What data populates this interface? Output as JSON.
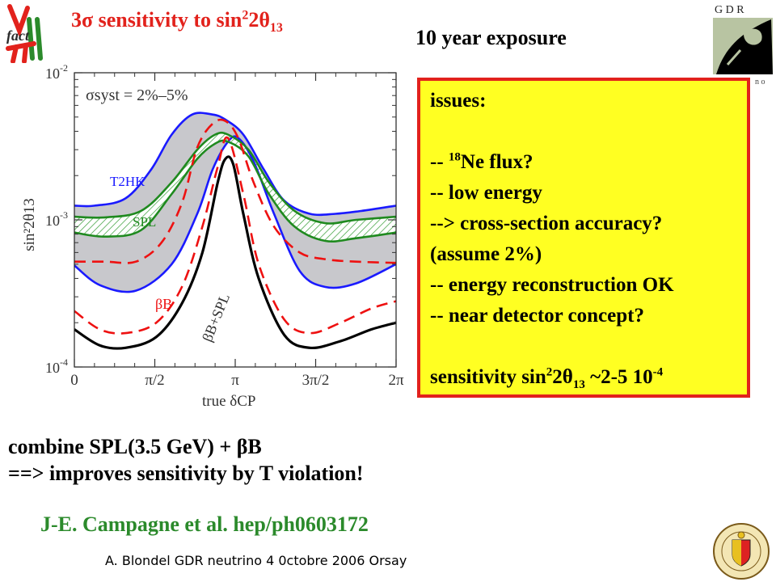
{
  "slide": {
    "title": {
      "prefix": "3σ sensitivity to sin",
      "sup": "2",
      "mid": "2θ",
      "sub": "13"
    },
    "exposure": "10 year exposure",
    "issues": {
      "heading": "issues:",
      "flux": {
        "pre": "-- ",
        "sup": "18",
        "post": "Ne flux?"
      },
      "low_energy": "-- low energy",
      "cross_section": "--> cross-section accuracy?",
      "assume": "(assume 2%)",
      "energy_reco": "-- energy reconstruction OK",
      "near_detector": "-- near detector concept?",
      "sensitivity": {
        "pre": "sensitivity sin",
        "sup": "2",
        "mid": "2θ",
        "sub": "13",
        "mid2": " ~2-5 10",
        "sup2": "-4"
      }
    },
    "combine": [
      "combine SPL(3.5 GeV) + βB",
      "==> improves sensitivity by T violation!"
    ],
    "citation": "J-E. Campagne et al. hep/ph0603172",
    "footer": "A. Blondel GDR neutrino 4 0ctobre 2006 Orsay",
    "logos": {
      "left": "factvll-logo",
      "right_text": "G D R",
      "right_sub": "n  o",
      "seal": "geneva-seal"
    }
  },
  "chart_data": {
    "type": "line",
    "annotation": "σsyst = 2%–5%",
    "xlabel": "true δCP",
    "ylabel": "sin²2θ13",
    "xlim": [
      0,
      6.2832
    ],
    "ylim": [
      0.0001,
      0.01
    ],
    "yscale": "log",
    "xticks": [
      {
        "v": 0,
        "label": "0"
      },
      {
        "v": 1.5708,
        "label": "π/2"
      },
      {
        "v": 3.1416,
        "label": "π"
      },
      {
        "v": 4.7124,
        "label": "3π/2"
      },
      {
        "v": 6.2832,
        "label": "2π"
      }
    ],
    "yticks": [
      {
        "v": 0.0001,
        "base": "10",
        "exp": "-4"
      },
      {
        "v": 0.001,
        "base": "10",
        "exp": "-3"
      },
      {
        "v": 0.01,
        "base": "10",
        "exp": "-2"
      }
    ],
    "labels": {
      "t2hk": "T2HK",
      "spl": "SPL",
      "bb": "βB",
      "bbspl": "βB+SPL"
    },
    "colors": {
      "t2hk": "#1a1aff",
      "spl": "#1f8a1f",
      "bb": "#ee1111",
      "bbspl": "#000000",
      "band": "#c8c8cc",
      "hatch": "#2e9a2e"
    },
    "series": [
      {
        "name": "T2HK",
        "style": "blue",
        "values": [
          [
            0,
            0.00125
          ],
          [
            0.4,
            0.00125
          ],
          [
            1.0,
            0.0014
          ],
          [
            1.5,
            0.0022
          ],
          [
            1.9,
            0.0038
          ],
          [
            2.3,
            0.0052
          ],
          [
            2.7,
            0.0052
          ],
          [
            2.95,
            0.0048
          ],
          [
            3.3,
            0.0038
          ],
          [
            3.7,
            0.0022
          ],
          [
            4.1,
            0.00135
          ],
          [
            4.6,
            0.0011
          ],
          [
            5.1,
            0.0011
          ],
          [
            5.6,
            0.00115
          ],
          [
            6.2832,
            0.00125
          ]
        ]
      },
      {
        "name": "T2HK",
        "style": "blue",
        "values": [
          [
            0,
            0.00049
          ],
          [
            0.5,
            0.00036
          ],
          [
            1.2,
            0.00033
          ],
          [
            1.9,
            0.0005
          ],
          [
            2.4,
            0.0011
          ],
          [
            2.7,
            0.0022
          ],
          [
            3.0,
            0.0034
          ],
          [
            3.2,
            0.0036
          ],
          [
            3.5,
            0.0025
          ],
          [
            3.9,
            0.0011
          ],
          [
            4.4,
            0.00045
          ],
          [
            4.9,
            0.00035
          ],
          [
            5.5,
            0.00037
          ],
          [
            6.2832,
            0.0005
          ]
        ]
      },
      {
        "name": "SPL",
        "style": "green",
        "values": [
          [
            0,
            0.00105
          ],
          [
            0.6,
            0.00104
          ],
          [
            1.3,
            0.00115
          ],
          [
            1.9,
            0.0018
          ],
          [
            2.4,
            0.003
          ],
          [
            2.75,
            0.0038
          ],
          [
            3.0,
            0.0038
          ],
          [
            3.4,
            0.003
          ],
          [
            3.8,
            0.0018
          ],
          [
            4.3,
            0.00115
          ],
          [
            4.9,
            0.00095
          ],
          [
            5.5,
            0.001
          ],
          [
            6.2832,
            0.00105
          ]
        ]
      },
      {
        "name": "SPL",
        "style": "green",
        "values": [
          [
            0,
            0.00082
          ],
          [
            0.6,
            0.00077
          ],
          [
            1.3,
            0.00085
          ],
          [
            1.9,
            0.0015
          ],
          [
            2.4,
            0.0026
          ],
          [
            2.75,
            0.0033
          ],
          [
            3.0,
            0.0034
          ],
          [
            3.4,
            0.0027
          ],
          [
            3.8,
            0.0015
          ],
          [
            4.3,
            0.0009
          ],
          [
            4.9,
            0.00072
          ],
          [
            5.5,
            0.00075
          ],
          [
            6.2832,
            0.00082
          ]
        ]
      },
      {
        "name": "βB",
        "style": "red-dashed",
        "values": [
          [
            0,
            0.00052
          ],
          [
            0.6,
            0.00052
          ],
          [
            1.2,
            0.00052
          ],
          [
            1.7,
            0.0007
          ],
          [
            2.1,
            0.0013
          ],
          [
            2.4,
            0.0031
          ],
          [
            2.7,
            0.0045
          ],
          [
            2.95,
            0.0047
          ],
          [
            3.2,
            0.0036
          ],
          [
            3.5,
            0.0018
          ],
          [
            3.9,
            0.0009
          ],
          [
            4.4,
            0.0006
          ],
          [
            4.9,
            0.00054
          ],
          [
            5.5,
            0.00052
          ],
          [
            6.2832,
            0.00051
          ]
        ]
      },
      {
        "name": "βB",
        "style": "red-dashed",
        "values": [
          [
            0,
            0.00024
          ],
          [
            0.5,
            0.00018
          ],
          [
            1.0,
            0.00017
          ],
          [
            1.6,
            0.0002
          ],
          [
            2.1,
            0.00035
          ],
          [
            2.5,
            0.0009
          ],
          [
            2.8,
            0.0023
          ],
          [
            3.0,
            0.0036
          ],
          [
            3.3,
            0.0015
          ],
          [
            3.6,
            0.0005
          ],
          [
            4.1,
            0.00021
          ],
          [
            4.6,
            0.00017
          ],
          [
            5.2,
            0.0002
          ],
          [
            5.8,
            0.00025
          ],
          [
            6.2832,
            0.00028
          ]
        ]
      },
      {
        "name": "βB+SPL",
        "style": "black",
        "values": [
          [
            0,
            0.00018
          ],
          [
            0.5,
            0.00014
          ],
          [
            1.0,
            0.000135
          ],
          [
            1.6,
            0.00016
          ],
          [
            2.1,
            0.00027
          ],
          [
            2.5,
            0.0006
          ],
          [
            2.8,
            0.0018
          ],
          [
            2.95,
            0.0026
          ],
          [
            3.1,
            0.0024
          ],
          [
            3.3,
            0.0011
          ],
          [
            3.6,
            0.0004
          ],
          [
            4.1,
            0.000165
          ],
          [
            4.6,
            0.000135
          ],
          [
            5.2,
            0.00015
          ],
          [
            5.8,
            0.00018
          ],
          [
            6.2832,
            0.0002
          ]
        ]
      }
    ]
  }
}
